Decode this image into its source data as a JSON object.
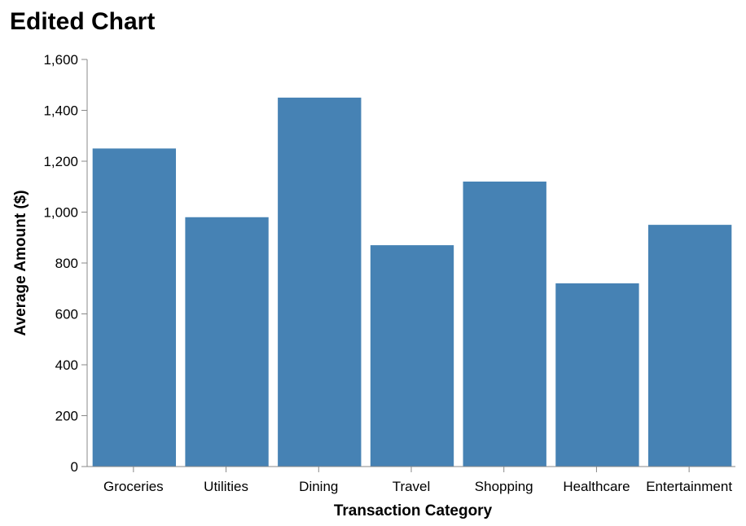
{
  "chart_data": {
    "type": "bar",
    "title": "Edited Chart",
    "xlabel": "Transaction Category",
    "ylabel": "Average Amount ($)",
    "categories": [
      "Groceries",
      "Utilities",
      "Dining",
      "Travel",
      "Shopping",
      "Healthcare",
      "Entertainment"
    ],
    "values": [
      1250,
      980,
      1450,
      870,
      1120,
      720,
      950
    ],
    "ylim": [
      0,
      1600
    ],
    "yticks": [
      0,
      200,
      400,
      600,
      800,
      1000,
      1200,
      1400,
      1600
    ],
    "ytick_labels": [
      "0",
      "200",
      "400",
      "600",
      "800",
      "1,000",
      "1,200",
      "1,400",
      "1,600"
    ],
    "grid": false,
    "legend": "none",
    "bar_color": "#4682b4"
  }
}
